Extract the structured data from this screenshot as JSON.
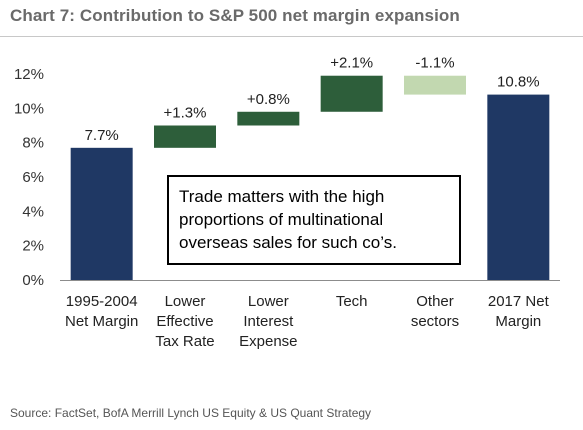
{
  "title": "Chart 7: Contribution to S&P 500 net margin expansion",
  "source": "Source: FactSet, BofA Merrill Lynch US Equity & US Quant Strategy",
  "annotation": {
    "lines": [
      "Trade matters with the high",
      "proportions of multinational",
      "overseas sales for such co’s."
    ]
  },
  "chart_data": {
    "type": "bar",
    "subtype": "waterfall",
    "categories": [
      [
        "1995-2004",
        "Net Margin"
      ],
      [
        "Lower",
        "Effective",
        "Tax Rate"
      ],
      [
        "Lower",
        "Interest",
        "Expense"
      ],
      [
        "Tech"
      ],
      [
        "Other",
        "sectors"
      ],
      [
        "2017 Net",
        "Margin"
      ]
    ],
    "bars": [
      {
        "start": 0,
        "end": 7.7,
        "label": "7.7%",
        "color": "#1f3864"
      },
      {
        "start": 7.7,
        "end": 9.0,
        "label": "+1.3%",
        "color": "#2d5e3a"
      },
      {
        "start": 9.0,
        "end": 9.8,
        "label": "+0.8%",
        "color": "#2d5e3a"
      },
      {
        "start": 9.8,
        "end": 11.9,
        "label": "+2.1%",
        "color": "#2d5e3a"
      },
      {
        "start": 11.9,
        "end": 10.8,
        "label": "-1.1%",
        "color": "#c2d8b0"
      },
      {
        "start": 0,
        "end": 10.8,
        "label": "10.8%",
        "color": "#1f3864"
      }
    ],
    "yticks": [
      "0%",
      "2%",
      "4%",
      "6%",
      "8%",
      "10%",
      "12%"
    ],
    "ytick_values": [
      0,
      2,
      4,
      6,
      8,
      10,
      12
    ],
    "ylim": [
      0,
      12
    ],
    "grid": false,
    "legend": "none"
  }
}
